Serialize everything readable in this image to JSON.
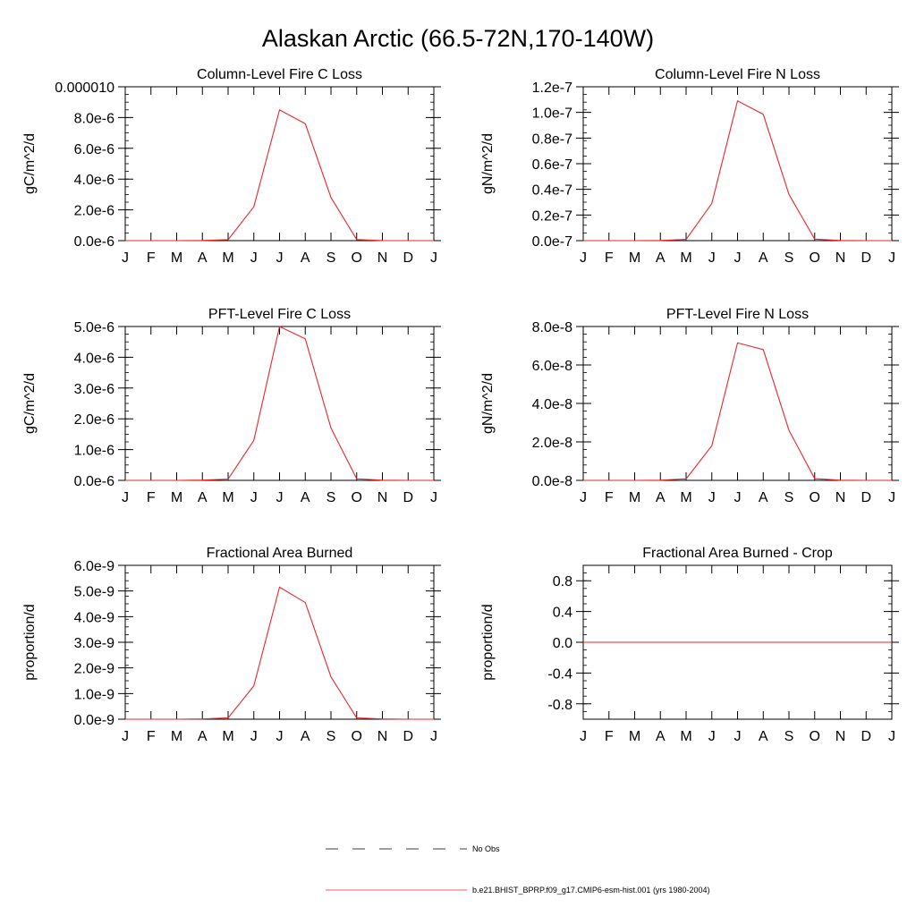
{
  "figure": {
    "title": "Alaskan Arctic (66.5-72N,170-140W)"
  },
  "chart_data": [
    {
      "type": "line",
      "title": "Column-Level Fire C Loss",
      "ylabel": "gC/m^2/d",
      "categories": [
        "J",
        "F",
        "M",
        "A",
        "M",
        "J",
        "J",
        "A",
        "S",
        "O",
        "N",
        "D",
        "J"
      ],
      "ylim": [
        0,
        1e-05
      ],
      "yticks": [
        0,
        2e-06,
        4e-06,
        6e-06,
        8e-06,
        1e-05
      ],
      "ytick_labels": [
        "0.0e-6",
        "2.0e-6",
        "4.0e-6",
        "6.0e-6",
        "8.0e-6",
        "0.000010"
      ],
      "series": [
        {
          "values": [
            0,
            0,
            0,
            1e-08,
            6e-08,
            2.2e-06,
            8.5e-06,
            7.6e-06,
            2.8e-06,
            7e-08,
            5e-09,
            0,
            0
          ],
          "color": "#e8262a"
        }
      ]
    },
    {
      "type": "line",
      "title": "Column-Level Fire N Loss",
      "ylabel": "gN/m^2/d",
      "categories": [
        "J",
        "F",
        "M",
        "A",
        "M",
        "J",
        "J",
        "A",
        "S",
        "O",
        "N",
        "D",
        "J"
      ],
      "ylim": [
        0,
        1.2e-07
      ],
      "yticks": [
        0,
        2e-08,
        4e-08,
        6e-08,
        8e-08,
        1e-07,
        1.2e-07
      ],
      "ytick_labels": [
        "0.0e-7",
        "0.2e-7",
        "0.4e-7",
        "0.6e-7",
        "0.8e-7",
        "1.0e-7",
        "1.2e-7"
      ],
      "series": [
        {
          "values": [
            0,
            0,
            0,
            1e-10,
            1e-09,
            2.9e-08,
            1.09e-07,
            9.85e-08,
            3.6e-08,
            1.2e-09,
            1e-10,
            0,
            0
          ],
          "color": "#e8262a"
        }
      ]
    },
    {
      "type": "line",
      "title": "PFT-Level Fire C Loss",
      "ylabel": "gC/m^2/d",
      "categories": [
        "J",
        "F",
        "M",
        "A",
        "M",
        "J",
        "J",
        "A",
        "S",
        "O",
        "N",
        "D",
        "J"
      ],
      "ylim": [
        0,
        5e-06
      ],
      "yticks": [
        0,
        1e-06,
        2e-06,
        3e-06,
        4e-06,
        5e-06
      ],
      "ytick_labels": [
        "0.0e-6",
        "1.0e-6",
        "2.0e-6",
        "3.0e-6",
        "4.0e-6",
        "5.0e-6"
      ],
      "series": [
        {
          "values": [
            0,
            0,
            0,
            1e-08,
            4e-08,
            1.3e-06,
            5e-06,
            4.6e-06,
            1.7e-06,
            5e-08,
            5e-09,
            0,
            0
          ],
          "color": "#e8262a"
        }
      ]
    },
    {
      "type": "line",
      "title": "PFT-Level Fire N Loss",
      "ylabel": "gN/m^2/d",
      "categories": [
        "J",
        "F",
        "M",
        "A",
        "M",
        "J",
        "J",
        "A",
        "S",
        "O",
        "N",
        "D",
        "J"
      ],
      "ylim": [
        0,
        8e-08
      ],
      "yticks": [
        0,
        2e-08,
        4e-08,
        6e-08,
        8e-08
      ],
      "ytick_labels": [
        "0.0e-8",
        "2.0e-8",
        "4.0e-8",
        "6.0e-8",
        "8.0e-8"
      ],
      "series": [
        {
          "values": [
            0,
            0,
            0,
            1e-10,
            8e-10,
            1.8e-08,
            7.15e-08,
            6.8e-08,
            2.6e-08,
            9e-10,
            1e-10,
            0,
            0
          ],
          "color": "#e8262a"
        }
      ]
    },
    {
      "type": "line",
      "title": "Fractional Area Burned",
      "ylabel": "proportion/d",
      "categories": [
        "J",
        "F",
        "M",
        "A",
        "M",
        "J",
        "J",
        "A",
        "S",
        "O",
        "N",
        "D",
        "J"
      ],
      "ylim": [
        0,
        6e-09
      ],
      "yticks": [
        0,
        1e-09,
        2e-09,
        3e-09,
        4e-09,
        5e-09,
        6e-09
      ],
      "ytick_labels": [
        "0.0e-9",
        "1.0e-9",
        "2.0e-9",
        "3.0e-9",
        "4.0e-9",
        "5.0e-9",
        "6.0e-9"
      ],
      "series": [
        {
          "values": [
            0,
            0,
            0,
            1e-11,
            5e-11,
            1.3e-09,
            5.15e-09,
            4.55e-09,
            1.65e-09,
            5e-11,
            1e-11,
            0,
            0
          ],
          "color": "#e8262a"
        }
      ]
    },
    {
      "type": "line",
      "title": "Fractional Area Burned - Crop",
      "ylabel": "proportion/d",
      "categories": [
        "J",
        "F",
        "M",
        "A",
        "M",
        "J",
        "J",
        "A",
        "S",
        "O",
        "N",
        "D",
        "J"
      ],
      "ylim": [
        -1,
        1
      ],
      "yticks": [
        -0.8,
        -0.4,
        0,
        0.4,
        0.8
      ],
      "ytick_labels": [
        "-0.8",
        "-0.4",
        "0.0",
        "0.4",
        "0.8"
      ],
      "series": [
        {
          "values": [
            0,
            0,
            0,
            0,
            0,
            0,
            0,
            0,
            0,
            0,
            0,
            0,
            0
          ],
          "color": "#e8262a"
        }
      ]
    }
  ],
  "legend": {
    "placement": "bottom-center",
    "items": [
      {
        "label": "No Obs",
        "style": "dashed",
        "color": "#000000"
      },
      {
        "label": "b.e21.BHIST_BPRP.f09_g17.CMIP6-esm-hist.001 (yrs 1980-2004)",
        "style": "solid",
        "color": "#e8262a"
      }
    ]
  }
}
